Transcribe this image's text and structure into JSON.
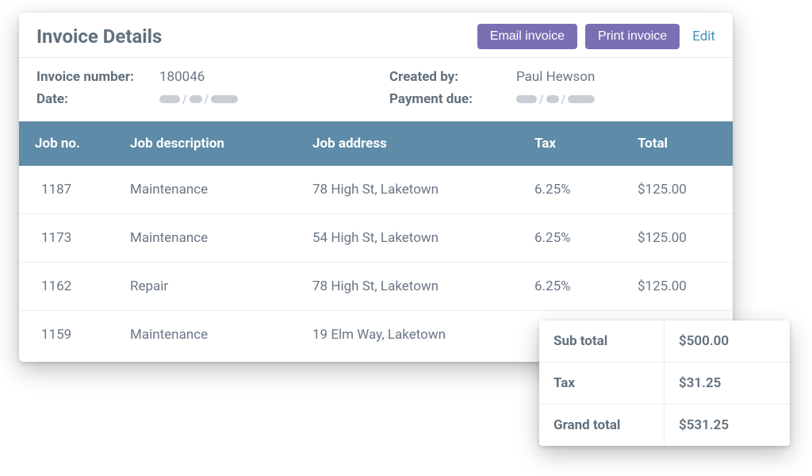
{
  "colors": {
    "accent_button": "#7b6fb3",
    "header_bg": "#5d8ba8",
    "text_muted": "#6b7785",
    "text_heading": "#62707c",
    "link": "#418fb4",
    "divider": "#eceef0",
    "placeholder": "#c9ced4",
    "card_bg": "#ffffff"
  },
  "header": {
    "title": "Invoice Details",
    "email_btn": "Email invoice",
    "print_btn": "Print invoice",
    "edit": "Edit"
  },
  "meta": {
    "invoice_number_label": "Invoice number:",
    "invoice_number_value": "180046",
    "date_label": "Date:",
    "created_by_label": "Created by:",
    "created_by_value": "Paul Hewson",
    "payment_due_label": "Payment due:"
  },
  "table": {
    "columns": {
      "job_no": "Job no.",
      "job_description": "Job description",
      "job_address": "Job address",
      "tax": "Tax",
      "total": "Total"
    },
    "rows": [
      {
        "job_no": "1187",
        "desc": "Maintenance",
        "addr": "78 High St, Laketown",
        "tax": "6.25%",
        "total": "$125.00"
      },
      {
        "job_no": "1173",
        "desc": "Maintenance",
        "addr": "54 High St, Laketown",
        "tax": "6.25%",
        "total": "$125.00"
      },
      {
        "job_no": "1162",
        "desc": "Repair",
        "addr": "78 High St, Laketown",
        "tax": "6.25%",
        "total": "$125.00"
      },
      {
        "job_no": "1159",
        "desc": "Maintenance",
        "addr": "19 Elm Way, Laketown",
        "tax": "",
        "total": ""
      }
    ]
  },
  "totals": {
    "subtotal_label": "Sub total",
    "subtotal_value": "$500.00",
    "tax_label": "Tax",
    "tax_value": "$31.25",
    "grand_label": "Grand total",
    "grand_value": "$531.25"
  }
}
